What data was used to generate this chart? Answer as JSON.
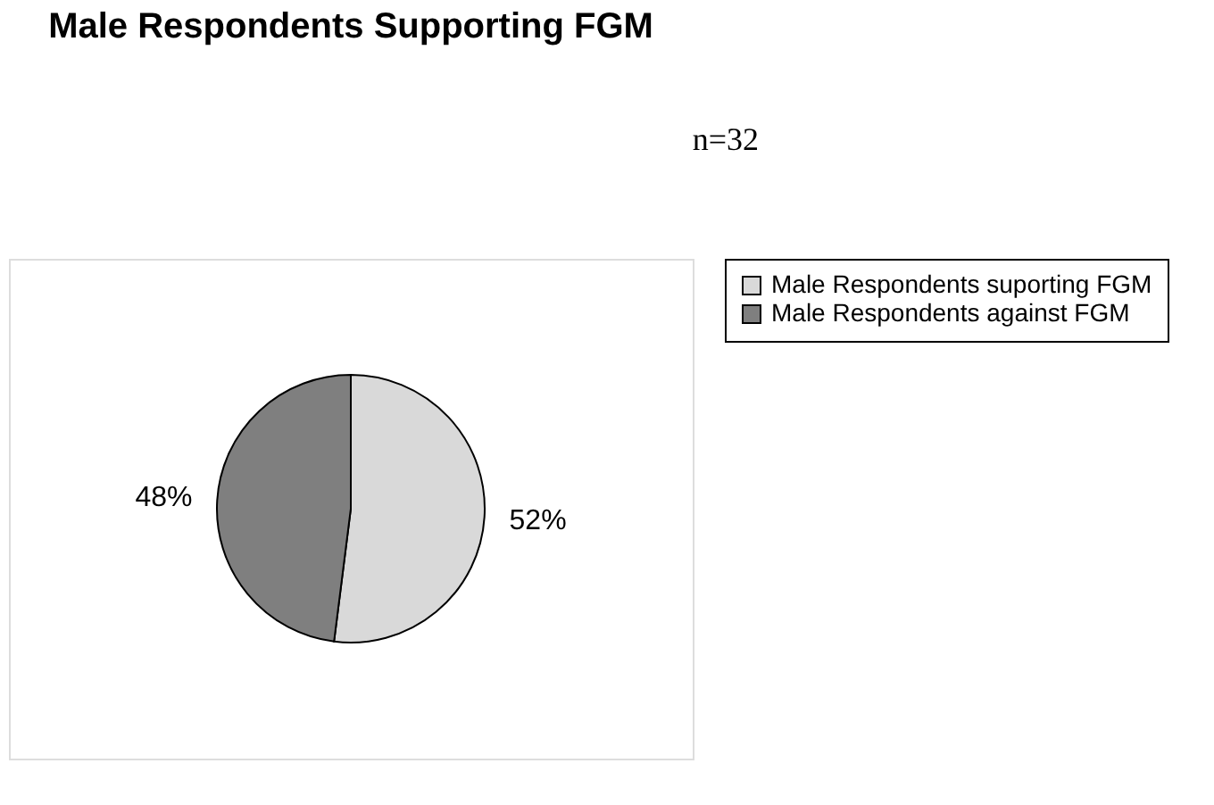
{
  "chart_data": {
    "type": "pie",
    "title": "Male Respondents Supporting FGM",
    "categories": [
      "Male Respondents suporting FGM",
      "Male Respondents against FGM"
    ],
    "values": [
      52,
      48
    ],
    "colors": [
      "#d9d9d9",
      "#7f7f7f"
    ],
    "value_labels": [
      "52%",
      "48%"
    ],
    "legend": "right",
    "annotations": [
      "n=32"
    ]
  }
}
